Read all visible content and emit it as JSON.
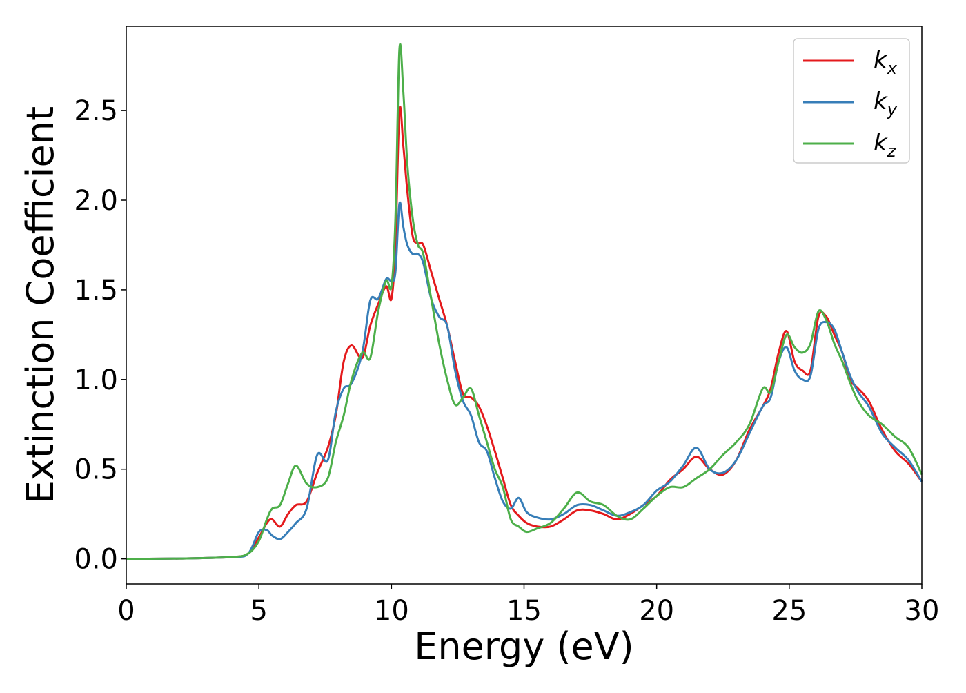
{
  "chart_data": {
    "type": "line",
    "xlabel": "Energy (eV)",
    "ylabel": "Extinction Coefficient",
    "xlim": [
      0,
      30
    ],
    "ylim": [
      -0.14,
      2.97
    ],
    "xticks": [
      0,
      5,
      10,
      15,
      20,
      25,
      30
    ],
    "yticks": [
      0.0,
      0.5,
      1.0,
      1.5,
      2.0,
      2.5
    ],
    "grid": false,
    "legend_position": "top-right",
    "series": [
      {
        "name": "k",
        "subscript": "x",
        "color": "#e41a1c",
        "x": [
          0,
          2,
          4,
          4.6,
          5.0,
          5.3,
          5.5,
          5.8,
          6.1,
          6.4,
          6.8,
          7.2,
          7.6,
          7.9,
          8.2,
          8.5,
          8.9,
          9.2,
          9.5,
          9.8,
          10.0,
          10.15,
          10.3,
          10.45,
          10.6,
          10.8,
          11.0,
          11.2,
          11.5,
          11.8,
          12.1,
          12.4,
          12.7,
          13.0,
          13.3,
          13.6,
          13.9,
          14.2,
          14.5,
          14.8,
          15.1,
          15.5,
          16.0,
          16.5,
          17.0,
          17.5,
          18.0,
          18.5,
          19.0,
          19.5,
          20.0,
          20.5,
          21.0,
          21.5,
          22.0,
          22.5,
          23.0,
          23.5,
          24.0,
          24.3,
          24.6,
          24.9,
          25.2,
          25.5,
          25.8,
          26.1,
          26.4,
          26.7,
          27.0,
          27.3,
          27.6,
          28.0,
          28.5,
          29.0,
          29.5,
          30.0
        ],
        "y": [
          0.0,
          0.002,
          0.01,
          0.03,
          0.12,
          0.2,
          0.22,
          0.18,
          0.25,
          0.3,
          0.32,
          0.48,
          0.62,
          0.8,
          1.1,
          1.19,
          1.12,
          1.3,
          1.42,
          1.52,
          1.45,
          1.75,
          2.5,
          2.3,
          2.05,
          1.8,
          1.76,
          1.75,
          1.6,
          1.45,
          1.3,
          1.1,
          0.92,
          0.9,
          0.85,
          0.74,
          0.6,
          0.45,
          0.3,
          0.24,
          0.2,
          0.18,
          0.18,
          0.22,
          0.27,
          0.27,
          0.25,
          0.22,
          0.25,
          0.3,
          0.35,
          0.44,
          0.5,
          0.57,
          0.5,
          0.47,
          0.55,
          0.72,
          0.85,
          0.95,
          1.15,
          1.27,
          1.1,
          1.05,
          1.05,
          1.35,
          1.35,
          1.25,
          1.15,
          1.0,
          0.95,
          0.88,
          0.72,
          0.6,
          0.53,
          0.43
        ]
      },
      {
        "name": "k",
        "subscript": "y",
        "color": "#377eb8",
        "x": [
          0,
          2,
          4,
          4.6,
          5.0,
          5.3,
          5.5,
          5.8,
          6.1,
          6.4,
          6.8,
          7.2,
          7.6,
          7.9,
          8.2,
          8.5,
          8.9,
          9.2,
          9.5,
          9.8,
          10.0,
          10.15,
          10.3,
          10.45,
          10.6,
          10.8,
          11.0,
          11.2,
          11.5,
          11.8,
          12.1,
          12.4,
          12.7,
          13.0,
          13.3,
          13.6,
          13.9,
          14.2,
          14.5,
          14.8,
          15.1,
          15.5,
          16.0,
          16.5,
          17.0,
          17.5,
          18.0,
          18.5,
          19.0,
          19.5,
          20.0,
          20.5,
          21.0,
          21.5,
          22.0,
          22.5,
          23.0,
          23.5,
          24.0,
          24.3,
          24.6,
          24.9,
          25.2,
          25.5,
          25.8,
          26.1,
          26.4,
          26.7,
          27.0,
          27.3,
          27.6,
          28.0,
          28.5,
          29.0,
          29.5,
          30.0
        ],
        "y": [
          0.0,
          0.002,
          0.01,
          0.03,
          0.15,
          0.16,
          0.13,
          0.11,
          0.15,
          0.2,
          0.28,
          0.58,
          0.55,
          0.82,
          0.95,
          0.98,
          1.15,
          1.44,
          1.45,
          1.56,
          1.55,
          1.6,
          1.98,
          1.85,
          1.75,
          1.7,
          1.7,
          1.65,
          1.45,
          1.35,
          1.3,
          1.05,
          0.88,
          0.8,
          0.65,
          0.6,
          0.45,
          0.32,
          0.28,
          0.34,
          0.26,
          0.23,
          0.22,
          0.25,
          0.3,
          0.3,
          0.27,
          0.24,
          0.26,
          0.3,
          0.38,
          0.43,
          0.52,
          0.62,
          0.5,
          0.48,
          0.55,
          0.7,
          0.85,
          0.9,
          1.1,
          1.18,
          1.05,
          1.0,
          1.02,
          1.28,
          1.32,
          1.28,
          1.15,
          1.02,
          0.93,
          0.85,
          0.7,
          0.62,
          0.55,
          0.43
        ]
      },
      {
        "name": "k",
        "subscript": "z",
        "color": "#4daf4a",
        "x": [
          0,
          2,
          4,
          4.6,
          5.0,
          5.3,
          5.5,
          5.8,
          6.1,
          6.4,
          6.8,
          7.2,
          7.6,
          7.9,
          8.2,
          8.5,
          8.9,
          9.2,
          9.5,
          9.8,
          10.0,
          10.15,
          10.3,
          10.45,
          10.6,
          10.8,
          11.0,
          11.2,
          11.5,
          11.8,
          12.1,
          12.4,
          12.7,
          13.0,
          13.3,
          13.6,
          13.9,
          14.2,
          14.5,
          14.8,
          15.1,
          15.5,
          16.0,
          16.5,
          17.0,
          17.5,
          18.0,
          18.5,
          19.0,
          19.5,
          20.0,
          20.5,
          21.0,
          21.5,
          22.0,
          22.5,
          23.0,
          23.5,
          24.0,
          24.3,
          24.6,
          24.9,
          25.2,
          25.5,
          25.8,
          26.1,
          26.4,
          26.7,
          27.0,
          27.3,
          27.6,
          28.0,
          28.5,
          29.0,
          29.5,
          30.0
        ],
        "y": [
          0.0,
          0.002,
          0.01,
          0.03,
          0.1,
          0.22,
          0.28,
          0.3,
          0.42,
          0.52,
          0.42,
          0.4,
          0.45,
          0.65,
          0.8,
          1.0,
          1.15,
          1.12,
          1.38,
          1.55,
          1.52,
          1.9,
          2.84,
          2.6,
          2.2,
          1.9,
          1.75,
          1.7,
          1.45,
          1.2,
          1.0,
          0.86,
          0.9,
          0.95,
          0.8,
          0.65,
          0.5,
          0.4,
          0.22,
          0.18,
          0.15,
          0.17,
          0.2,
          0.28,
          0.37,
          0.32,
          0.3,
          0.24,
          0.22,
          0.28,
          0.35,
          0.4,
          0.4,
          0.45,
          0.5,
          0.58,
          0.65,
          0.75,
          0.95,
          0.93,
          1.1,
          1.25,
          1.18,
          1.15,
          1.2,
          1.38,
          1.33,
          1.2,
          1.1,
          0.98,
          0.88,
          0.8,
          0.75,
          0.68,
          0.62,
          0.47
        ]
      }
    ]
  }
}
